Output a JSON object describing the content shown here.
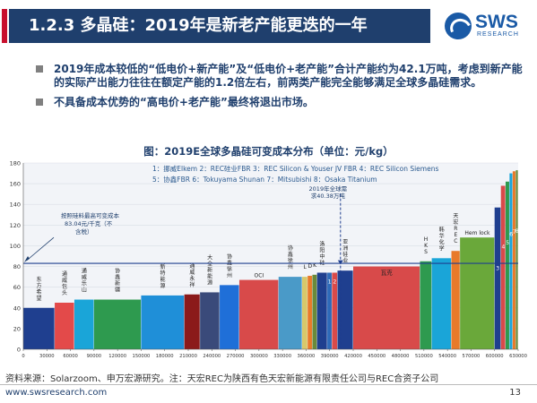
{
  "header": {
    "title": "1.2.3 多晶硅：2019年是新老产能更迭的一年",
    "logo_text": "SWS",
    "logo_sub": "RESEARCH"
  },
  "bullets": [
    "2019年成本较低的“低电价+新产能”及“低电价+老产能”合计产能约为42.1万吨，考虑到新产能的实际产出能力往往在额定产能的1.2倍左右，前两类产能完全能够满足全球多晶硅需求。",
    "不具备成本优势的“高电价+老产能”最终将退出市场。"
  ],
  "chart_data": {
    "type": "bar",
    "title": "图：2019E全球多晶硅可变成本分布（单位：元/kg）",
    "legend_lines": [
      "1：挪威Elkem  2：REC硅业FBR  3：REC Silicon & Youser JV FBR  4：REC Silicon Siemens",
      "5：协鑫FBR  6：Tokuyama Shunan  7：Mitsubishi  8：Osaka Titanium"
    ],
    "xlim": [
      0,
      630000
    ],
    "ylim": [
      0,
      180
    ],
    "x_ticks": [
      0,
      30000,
      60000,
      90000,
      120000,
      150000,
      180000,
      210000,
      240000,
      270000,
      300000,
      330000,
      360000,
      390000,
      420000,
      450000,
      480000,
      510000,
      540000,
      570000,
      600000,
      630000
    ],
    "y_ticks": [
      0,
      20,
      40,
      60,
      80,
      100,
      120,
      140,
      160,
      180
    ],
    "bars": [
      {
        "label": "东方希望",
        "x0": 0,
        "x1": 40000,
        "value": 40,
        "color": "#1f3f8f"
      },
      {
        "label": "通威包头",
        "x0": 40000,
        "x1": 65000,
        "value": 45,
        "color": "#e34a4a"
      },
      {
        "label": "通威乐山",
        "x0": 65000,
        "x1": 90000,
        "value": 48,
        "color": "#1aa5d8"
      },
      {
        "label": "协鑫新疆",
        "x0": 90000,
        "x1": 150000,
        "value": 48,
        "color": "#2e9a4f"
      },
      {
        "label": "新特能源",
        "x0": 150000,
        "x1": 205000,
        "value": 52,
        "color": "#1f8fd8"
      },
      {
        "label": "通威永祥",
        "x0": 205000,
        "x1": 225000,
        "value": 53,
        "color": "#8b1a1a"
      },
      {
        "label": "大全新能源",
        "x0": 225000,
        "x1": 250000,
        "value": 55,
        "color": "#3a4a7a"
      },
      {
        "label": "协鑫徐州",
        "x0": 250000,
        "x1": 275000,
        "value": 62,
        "color": "#1f6fd8"
      },
      {
        "label": "OCI",
        "x0": 275000,
        "x1": 325000,
        "value": 67,
        "color": "#d84a4a"
      },
      {
        "label": "协鑫徐州",
        "x0": 325000,
        "x1": 355000,
        "value": 70,
        "color": "#4a9ac8"
      },
      {
        "label": "L",
        "x0": 355000,
        "x1": 362000,
        "value": 70,
        "color": "#d8c86a"
      },
      {
        "label": "D",
        "x0": 362000,
        "x1": 368000,
        "value": 71,
        "color": "#e87a2a"
      },
      {
        "label": "K",
        "x0": 368000,
        "x1": 374000,
        "value": 72,
        "color": "#6a8a3a"
      },
      {
        "label": "洛阳中硅",
        "x0": 374000,
        "x1": 387000,
        "value": 74,
        "color": "#1f3f8f"
      },
      {
        "label": "1",
        "x0": 387000,
        "x1": 393000,
        "value": 74,
        "color": "#2e6ab8"
      },
      {
        "label": "2",
        "x0": 393000,
        "x1": 400000,
        "value": 74,
        "color": "#d84a4a"
      },
      {
        "label": "亚洲硅业",
        "x0": 400000,
        "x1": 420000,
        "value": 76,
        "color": "#1f3f8f"
      },
      {
        "label": "瓦克",
        "x0": 420000,
        "x1": 505000,
        "value": 80,
        "color": "#d84a4a"
      },
      {
        "label": "HKS",
        "x0": 505000,
        "x1": 520000,
        "value": 85,
        "color": "#2e9a4f"
      },
      {
        "label": "韩华化学",
        "x0": 520000,
        "x1": 545000,
        "value": 88,
        "color": "#1aa5d8"
      },
      {
        "label": "天宏REC",
        "x0": 545000,
        "x1": 556000,
        "value": 95,
        "color": "#e87a2a"
      },
      {
        "label": "Hem lock",
        "x0": 556000,
        "x1": 600000,
        "value": 108,
        "color": "#6aa83a"
      },
      {
        "label": "3",
        "x0": 600000,
        "x1": 608000,
        "value": 137,
        "color": "#1f3f8f"
      },
      {
        "label": "4",
        "x0": 608000,
        "x1": 614000,
        "value": 158,
        "color": "#d84a4a"
      },
      {
        "label": "5",
        "x0": 614000,
        "x1": 619000,
        "value": 162,
        "color": "#2e9a4f"
      },
      {
        "label": "6",
        "x0": 619000,
        "x1": 623000,
        "value": 170,
        "color": "#1aa5d8"
      },
      {
        "label": "7",
        "x0": 623000,
        "x1": 627000,
        "value": 172,
        "color": "#e87a2a"
      },
      {
        "label": "8",
        "x0": 627000,
        "x1": 630000,
        "value": 173,
        "color": "#6a8a3a"
      }
    ],
    "price_line": {
      "value": 83.04
    },
    "demand_line": {
      "value": 403800
    },
    "annotations": {
      "price": "按照硅料最高可变成本83.04元/千克（不含税）",
      "demand": "2019年全球需求40.38万吨"
    }
  },
  "source": "资料来源：Solarzoom、申万宏源研究。注：天宏REC为陕西有色天宏新能源有限责任公司与REC合资子公司",
  "footer": {
    "url": "www.swsresearch.com",
    "page": "13"
  },
  "colors": {
    "title_band": "#1f3f6d",
    "accent": "#c8102e",
    "price_line": "#1f3f8f"
  }
}
